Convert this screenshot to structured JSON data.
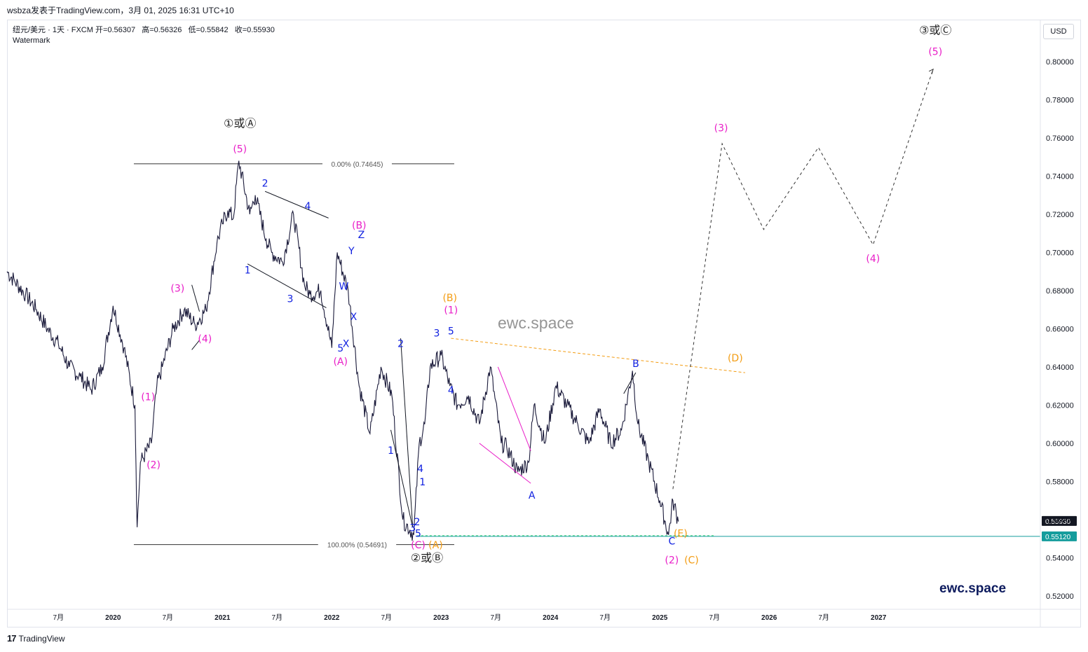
{
  "header": {
    "author_line": "wsbza发表于TradingView.com，3月 01, 2025 16:31 UTC+10",
    "symbol": "纽元/美元 · 1天 · FXCM",
    "open": "开=0.56307",
    "high": "高=0.56326",
    "low": "低=0.55842",
    "close": "收=0.55930",
    "watermark_label": "Watermark",
    "currency": "USD"
  },
  "footer": {
    "logo_mark": "17",
    "logo_text": "TradingView"
  },
  "brand_text": "ewc.space",
  "center_watermark": "ewc.space",
  "colors": {
    "price": "#1a1a3a",
    "magenta": "#e91ec8",
    "blue": "#1020e0",
    "orange": "#f39c12",
    "teal": "#149c9c",
    "fib_line": "#333333",
    "last_price_bg": "#131722",
    "support_bg": "#149c9c"
  },
  "chart_data": {
    "type": "line",
    "title": "纽元/美元 · 1天 · FXCM",
    "xlabel": "",
    "ylabel": "",
    "y_ticks": [
      "0.80000",
      "0.78000",
      "0.76000",
      "0.74000",
      "0.72000",
      "0.70000",
      "0.68000",
      "0.66000",
      "0.64000",
      "0.62000",
      "0.60000",
      "0.58000",
      "0.56000",
      "0.54000",
      "0.52000"
    ],
    "ylim": [
      0.513,
      0.822
    ],
    "x_ticks": [
      "7月",
      "2020",
      "7月",
      "2021",
      "7月",
      "2022",
      "7月",
      "2023",
      "7月",
      "2024",
      "7月",
      "2025",
      "7月",
      "2026",
      "7月",
      "2027"
    ],
    "xlim": [
      2019.03,
      2028.48
    ],
    "series": [
      {
        "x": [
          2019.03,
          2019.1,
          2019.2,
          2019.3,
          2019.4,
          2019.5,
          2019.6,
          2019.7,
          2019.8,
          2019.9,
          2020.0,
          2020.1,
          2020.2,
          2020.22,
          2020.25,
          2020.35,
          2020.4,
          2020.45,
          2020.55,
          2020.65,
          2020.75,
          2020.85,
          2020.95,
          2021.0,
          2021.05,
          2021.1,
          2021.15,
          2021.25,
          2021.3,
          2021.4,
          2021.45,
          2021.55,
          2021.65,
          2021.75,
          2021.8,
          2021.9,
          2022.0,
          2022.05,
          2022.15,
          2022.25,
          2022.35,
          2022.45,
          2022.55,
          2022.65,
          2022.75,
          2022.8,
          2022.85,
          2022.9,
          2023.0,
          2023.08,
          2023.15,
          2023.25,
          2023.35,
          2023.45,
          2023.55,
          2023.6,
          2023.7,
          2023.8,
          2023.85,
          2023.95,
          2024.05,
          2024.15,
          2024.25,
          2024.35,
          2024.45,
          2024.55,
          2024.65,
          2024.75,
          2024.8,
          2024.9,
          2025.0,
          2025.08,
          2025.12,
          2025.17
        ],
        "values": [
          0.69,
          0.685,
          0.678,
          0.67,
          0.66,
          0.652,
          0.64,
          0.635,
          0.628,
          0.64,
          0.672,
          0.65,
          0.62,
          0.556,
          0.59,
          0.6,
          0.63,
          0.64,
          0.66,
          0.67,
          0.662,
          0.67,
          0.705,
          0.715,
          0.722,
          0.718,
          0.748,
          0.72,
          0.73,
          0.707,
          0.7,
          0.695,
          0.72,
          0.683,
          0.678,
          0.68,
          0.65,
          0.7,
          0.68,
          0.63,
          0.605,
          0.64,
          0.625,
          0.56,
          0.552,
          0.6,
          0.61,
          0.64,
          0.646,
          0.63,
          0.62,
          0.625,
          0.61,
          0.64,
          0.6,
          0.598,
          0.585,
          0.59,
          0.62,
          0.6,
          0.63,
          0.62,
          0.61,
          0.6,
          0.618,
          0.6,
          0.607,
          0.638,
          0.61,
          0.59,
          0.57,
          0.552,
          0.57,
          0.559
        ]
      }
    ],
    "fibonacci": [
      {
        "label": "0.00% (0.74645)",
        "value": 0.74645
      },
      {
        "label": "100.00% (0.54691)",
        "value": 0.54691
      }
    ],
    "price_labels": [
      {
        "label": "0.55930",
        "value": 0.5593
      },
      {
        "label": "0.55120",
        "value": 0.5512
      }
    ],
    "projection_path": [
      {
        "x": 2025.12,
        "y": 0.576
      },
      {
        "x": 2025.57,
        "y": 0.757
      },
      {
        "x": 2025.95,
        "y": 0.712
      },
      {
        "x": 2026.45,
        "y": 0.755
      },
      {
        "x": 2026.95,
        "y": 0.704
      },
      {
        "x": 2027.5,
        "y": 0.796
      }
    ],
    "annotations": [
      {
        "text": "①或Ⓐ",
        "x": 2021.16,
        "y": 0.7656,
        "color": "#222222"
      },
      {
        "text": "(5)",
        "x": 2021.16,
        "y": 0.7525,
        "color": "#e91ec8"
      },
      {
        "text": "(3)",
        "x": 2020.59,
        "y": 0.6795,
        "color": "#e91ec8"
      },
      {
        "text": "(4)",
        "x": 2020.84,
        "y": 0.653,
        "color": "#e91ec8"
      },
      {
        "text": "(1)",
        "x": 2020.32,
        "y": 0.6225,
        "color": "#e91ec8"
      },
      {
        "text": "(2)",
        "x": 2020.37,
        "y": 0.587,
        "color": "#e91ec8"
      },
      {
        "text": "1",
        "x": 2021.23,
        "y": 0.689,
        "color": "#1020e0"
      },
      {
        "text": "2",
        "x": 2021.39,
        "y": 0.7345,
        "color": "#1020e0"
      },
      {
        "text": "3",
        "x": 2021.62,
        "y": 0.674,
        "color": "#1020e0"
      },
      {
        "text": "4",
        "x": 2021.78,
        "y": 0.7225,
        "color": "#1020e0"
      },
      {
        "text": "(B)",
        "x": 2022.25,
        "y": 0.7125,
        "color": "#e91ec8"
      },
      {
        "text": "Z",
        "x": 2022.27,
        "y": 0.7075,
        "color": "#1020e0"
      },
      {
        "text": "Y",
        "x": 2022.18,
        "y": 0.699,
        "color": "#1020e0"
      },
      {
        "text": "W",
        "x": 2022.11,
        "y": 0.6805,
        "color": "#1020e0"
      },
      {
        "text": "X",
        "x": 2022.2,
        "y": 0.6645,
        "color": "#1020e0"
      },
      {
        "text": "X",
        "x": 2022.13,
        "y": 0.6505,
        "color": "#1020e0"
      },
      {
        "text": "5",
        "x": 2022.08,
        "y": 0.648,
        "color": "#1020e0"
      },
      {
        "text": "(A)",
        "x": 2022.08,
        "y": 0.641,
        "color": "#e91ec8"
      },
      {
        "text": "2",
        "x": 2022.63,
        "y": 0.6505,
        "color": "#1020e0"
      },
      {
        "text": "1",
        "x": 2022.54,
        "y": 0.5945,
        "color": "#1020e0"
      },
      {
        "text": "4",
        "x": 2022.81,
        "y": 0.585,
        "color": "#1020e0"
      },
      {
        "text": "1",
        "x": 2022.83,
        "y": 0.578,
        "color": "#1020e0"
      },
      {
        "text": "3",
        "x": 2022.74,
        "y": 0.554,
        "color": "#1020e0"
      },
      {
        "text": "2",
        "x": 2022.78,
        "y": 0.557,
        "color": "#1020e0"
      },
      {
        "text": "5",
        "x": 2022.79,
        "y": 0.551,
        "color": "#1020e0"
      },
      {
        "text": "(C)",
        "x": 2022.79,
        "y": 0.545,
        "color": "#e91ec8"
      },
      {
        "text": "(A)",
        "x": 2022.95,
        "y": 0.545,
        "color": "#f39c12"
      },
      {
        "text": "②或Ⓑ",
        "x": 2022.87,
        "y": 0.538,
        "color": "#222222"
      },
      {
        "text": "(B)",
        "x": 2023.08,
        "y": 0.6745,
        "color": "#f39c12"
      },
      {
        "text": "(1)",
        "x": 2023.09,
        "y": 0.668,
        "color": "#e91ec8"
      },
      {
        "text": "3",
        "x": 2022.96,
        "y": 0.656,
        "color": "#1020e0"
      },
      {
        "text": "5",
        "x": 2023.09,
        "y": 0.657,
        "color": "#1020e0"
      },
      {
        "text": "4",
        "x": 2023.09,
        "y": 0.626,
        "color": "#1020e0"
      },
      {
        "text": "A",
        "x": 2023.83,
        "y": 0.571,
        "color": "#1020e0"
      },
      {
        "text": "B",
        "x": 2024.78,
        "y": 0.64,
        "color": "#1020e0"
      },
      {
        "text": "C",
        "x": 2025.11,
        "y": 0.547,
        "color": "#1020e0"
      },
      {
        "text": "(2)",
        "x": 2025.11,
        "y": 0.537,
        "color": "#e91ec8"
      },
      {
        "text": "(C)",
        "x": 2025.29,
        "y": 0.537,
        "color": "#f39c12"
      },
      {
        "text": "(D)",
        "x": 2025.69,
        "y": 0.643,
        "color": "#f39c12"
      },
      {
        "text": "(E)",
        "x": 2025.19,
        "y": 0.551,
        "color": "#f39c12"
      },
      {
        "text": "(3)",
        "x": 2025.56,
        "y": 0.7635,
        "color": "#e91ec8"
      },
      {
        "text": "(4)",
        "x": 2026.95,
        "y": 0.695,
        "color": "#e91ec8"
      },
      {
        "text": "(5)",
        "x": 2027.52,
        "y": 0.8035,
        "color": "#e91ec8"
      },
      {
        "text": "③或Ⓒ",
        "x": 2027.52,
        "y": 0.8145,
        "color": "#222222"
      }
    ],
    "grid": false,
    "legend": "none"
  }
}
